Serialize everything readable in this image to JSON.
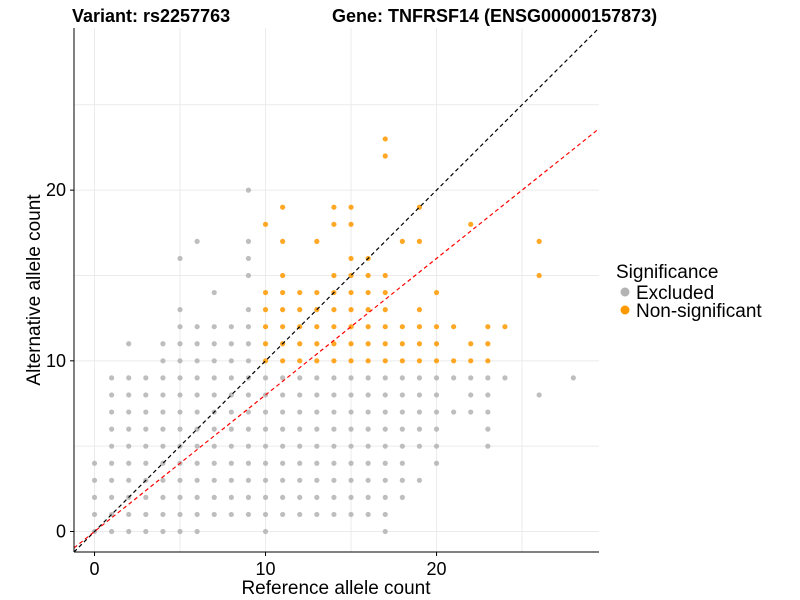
{
  "chart_data": {
    "type": "scatter",
    "title_left": "Variant: rs2257763",
    "title_right": "Gene: TNFRSF14 (ENSG00000157873)",
    "xlabel": "Reference allele count",
    "ylabel": "Alternative allele count",
    "xlim": [
      -1.2,
      29.5
    ],
    "ylim": [
      -1.2,
      29.5
    ],
    "x_ticks": [
      0,
      10,
      20
    ],
    "y_ticks": [
      0,
      10,
      20
    ],
    "grid": true,
    "legend": {
      "title": "Significance",
      "position": "right",
      "entries": [
        {
          "label": "Excluded",
          "color": "#b3b3b3"
        },
        {
          "label": "Non-significant",
          "color": "#ff9900"
        }
      ]
    },
    "reference_lines": [
      {
        "name": "y = x",
        "slope": 1.0,
        "intercept": 0,
        "color": "#000000",
        "style": "dashed"
      },
      {
        "name": "fit",
        "slope": 0.8,
        "intercept": 0,
        "color": "#ff0000",
        "style": "dashed"
      }
    ],
    "series": [
      {
        "name": "Excluded",
        "color": "#b3b3b3",
        "points": [
          [
            0,
            0
          ],
          [
            0,
            1
          ],
          [
            0,
            2
          ],
          [
            0,
            3
          ],
          [
            0,
            4
          ],
          [
            1,
            0
          ],
          [
            1,
            1
          ],
          [
            1,
            2
          ],
          [
            1,
            3
          ],
          [
            1,
            4
          ],
          [
            1,
            5
          ],
          [
            1,
            6
          ],
          [
            1,
            7
          ],
          [
            1,
            8
          ],
          [
            1,
            9
          ],
          [
            2,
            0
          ],
          [
            2,
            1
          ],
          [
            2,
            2
          ],
          [
            2,
            3
          ],
          [
            2,
            4
          ],
          [
            2,
            5
          ],
          [
            2,
            6
          ],
          [
            2,
            7
          ],
          [
            2,
            8
          ],
          [
            2,
            9
          ],
          [
            2,
            11
          ],
          [
            3,
            0
          ],
          [
            3,
            1
          ],
          [
            3,
            2
          ],
          [
            3,
            3
          ],
          [
            3,
            4
          ],
          [
            3,
            5
          ],
          [
            3,
            6
          ],
          [
            3,
            7
          ],
          [
            3,
            8
          ],
          [
            3,
            9
          ],
          [
            4,
            0
          ],
          [
            4,
            1
          ],
          [
            4,
            2
          ],
          [
            4,
            3
          ],
          [
            4,
            4
          ],
          [
            4,
            5
          ],
          [
            4,
            6
          ],
          [
            4,
            7
          ],
          [
            4,
            8
          ],
          [
            4,
            9
          ],
          [
            4,
            10
          ],
          [
            4,
            11
          ],
          [
            5,
            0
          ],
          [
            5,
            1
          ],
          [
            5,
            2
          ],
          [
            5,
            3
          ],
          [
            5,
            4
          ],
          [
            5,
            5
          ],
          [
            5,
            6
          ],
          [
            5,
            7
          ],
          [
            5,
            8
          ],
          [
            5,
            9
          ],
          [
            5,
            10
          ],
          [
            5,
            11
          ],
          [
            5,
            12
          ],
          [
            5,
            13
          ],
          [
            5,
            16
          ],
          [
            6,
            0
          ],
          [
            6,
            1
          ],
          [
            6,
            2
          ],
          [
            6,
            3
          ],
          [
            6,
            4
          ],
          [
            6,
            5
          ],
          [
            6,
            6
          ],
          [
            6,
            7
          ],
          [
            6,
            8
          ],
          [
            6,
            9
          ],
          [
            6,
            10
          ],
          [
            6,
            11
          ],
          [
            6,
            12
          ],
          [
            6,
            17
          ],
          [
            7,
            1
          ],
          [
            7,
            2
          ],
          [
            7,
            3
          ],
          [
            7,
            4
          ],
          [
            7,
            5
          ],
          [
            7,
            6
          ],
          [
            7,
            7
          ],
          [
            7,
            8
          ],
          [
            7,
            9
          ],
          [
            7,
            10
          ],
          [
            7,
            11
          ],
          [
            7,
            12
          ],
          [
            7,
            14
          ],
          [
            8,
            1
          ],
          [
            8,
            2
          ],
          [
            8,
            3
          ],
          [
            8,
            4
          ],
          [
            8,
            5
          ],
          [
            8,
            6
          ],
          [
            8,
            7
          ],
          [
            8,
            8
          ],
          [
            8,
            9
          ],
          [
            8,
            10
          ],
          [
            8,
            11
          ],
          [
            8,
            12
          ],
          [
            9,
            1
          ],
          [
            9,
            2
          ],
          [
            9,
            3
          ],
          [
            9,
            4
          ],
          [
            9,
            5
          ],
          [
            9,
            6
          ],
          [
            9,
            7
          ],
          [
            9,
            8
          ],
          [
            9,
            9
          ],
          [
            9,
            10
          ],
          [
            9,
            11
          ],
          [
            9,
            12
          ],
          [
            9,
            13
          ],
          [
            9,
            15
          ],
          [
            9,
            16
          ],
          [
            9,
            17
          ],
          [
            9,
            20
          ],
          [
            10,
            0
          ],
          [
            10,
            1
          ],
          [
            10,
            2
          ],
          [
            10,
            3
          ],
          [
            10,
            4
          ],
          [
            10,
            5
          ],
          [
            10,
            6
          ],
          [
            10,
            7
          ],
          [
            10,
            8
          ],
          [
            10,
            9
          ],
          [
            11,
            1
          ],
          [
            11,
            2
          ],
          [
            11,
            3
          ],
          [
            11,
            4
          ],
          [
            11,
            5
          ],
          [
            11,
            6
          ],
          [
            11,
            7
          ],
          [
            11,
            8
          ],
          [
            11,
            9
          ],
          [
            12,
            1
          ],
          [
            12,
            2
          ],
          [
            12,
            3
          ],
          [
            12,
            4
          ],
          [
            12,
            5
          ],
          [
            12,
            6
          ],
          [
            12,
            7
          ],
          [
            12,
            8
          ],
          [
            12,
            9
          ],
          [
            13,
            1
          ],
          [
            13,
            2
          ],
          [
            13,
            3
          ],
          [
            13,
            4
          ],
          [
            13,
            5
          ],
          [
            13,
            6
          ],
          [
            13,
            7
          ],
          [
            13,
            8
          ],
          [
            13,
            9
          ],
          [
            14,
            1
          ],
          [
            14,
            2
          ],
          [
            14,
            3
          ],
          [
            14,
            4
          ],
          [
            14,
            5
          ],
          [
            14,
            6
          ],
          [
            14,
            7
          ],
          [
            14,
            8
          ],
          [
            14,
            9
          ],
          [
            15,
            1
          ],
          [
            15,
            2
          ],
          [
            15,
            3
          ],
          [
            15,
            4
          ],
          [
            15,
            5
          ],
          [
            15,
            6
          ],
          [
            15,
            7
          ],
          [
            15,
            8
          ],
          [
            15,
            9
          ],
          [
            16,
            1
          ],
          [
            16,
            2
          ],
          [
            16,
            3
          ],
          [
            16,
            4
          ],
          [
            16,
            5
          ],
          [
            16,
            6
          ],
          [
            16,
            7
          ],
          [
            16,
            8
          ],
          [
            16,
            9
          ],
          [
            17,
            0
          ],
          [
            17,
            1
          ],
          [
            17,
            2
          ],
          [
            17,
            3
          ],
          [
            17,
            4
          ],
          [
            17,
            5
          ],
          [
            17,
            6
          ],
          [
            17,
            7
          ],
          [
            17,
            8
          ],
          [
            17,
            9
          ],
          [
            18,
            2
          ],
          [
            18,
            3
          ],
          [
            18,
            4
          ],
          [
            18,
            5
          ],
          [
            18,
            6
          ],
          [
            18,
            7
          ],
          [
            18,
            8
          ],
          [
            18,
            9
          ],
          [
            19,
            3
          ],
          [
            19,
            5
          ],
          [
            19,
            6
          ],
          [
            19,
            7
          ],
          [
            19,
            8
          ],
          [
            19,
            9
          ],
          [
            20,
            4
          ],
          [
            20,
            5
          ],
          [
            20,
            6
          ],
          [
            20,
            7
          ],
          [
            20,
            8
          ],
          [
            20,
            9
          ],
          [
            21,
            7
          ],
          [
            21,
            9
          ],
          [
            22,
            7
          ],
          [
            22,
            8
          ],
          [
            22,
            9
          ],
          [
            23,
            5
          ],
          [
            23,
            6
          ],
          [
            23,
            7
          ],
          [
            23,
            8
          ],
          [
            23,
            9
          ],
          [
            24,
            9
          ],
          [
            26,
            8
          ],
          [
            28,
            9
          ]
        ]
      },
      {
        "name": "Non-significant",
        "color": "#ff9900",
        "points": [
          [
            10,
            10
          ],
          [
            10,
            11
          ],
          [
            10,
            12
          ],
          [
            10,
            13
          ],
          [
            10,
            14
          ],
          [
            10,
            18
          ],
          [
            11,
            10
          ],
          [
            11,
            11
          ],
          [
            11,
            12
          ],
          [
            11,
            13
          ],
          [
            11,
            14
          ],
          [
            11,
            15
          ],
          [
            11,
            17
          ],
          [
            11,
            19
          ],
          [
            12,
            10
          ],
          [
            12,
            11
          ],
          [
            12,
            12
          ],
          [
            12,
            13
          ],
          [
            12,
            14
          ],
          [
            13,
            10
          ],
          [
            13,
            11
          ],
          [
            13,
            12
          ],
          [
            13,
            13
          ],
          [
            13,
            14
          ],
          [
            13,
            17
          ],
          [
            14,
            10
          ],
          [
            14,
            11
          ],
          [
            14,
            12
          ],
          [
            14,
            13
          ],
          [
            14,
            14
          ],
          [
            14,
            15
          ],
          [
            14,
            18
          ],
          [
            14,
            19
          ],
          [
            15,
            10
          ],
          [
            15,
            11
          ],
          [
            15,
            12
          ],
          [
            15,
            13
          ],
          [
            15,
            14
          ],
          [
            15,
            15
          ],
          [
            15,
            16
          ],
          [
            15,
            18
          ],
          [
            15,
            19
          ],
          [
            16,
            10
          ],
          [
            16,
            11
          ],
          [
            16,
            12
          ],
          [
            16,
            13
          ],
          [
            16,
            14
          ],
          [
            16,
            15
          ],
          [
            16,
            16
          ],
          [
            17,
            10
          ],
          [
            17,
            11
          ],
          [
            17,
            12
          ],
          [
            17,
            13
          ],
          [
            17,
            14
          ],
          [
            17,
            15
          ],
          [
            17,
            22
          ],
          [
            17,
            23
          ],
          [
            18,
            10
          ],
          [
            18,
            11
          ],
          [
            18,
            12
          ],
          [
            18,
            17
          ],
          [
            19,
            10
          ],
          [
            19,
            11
          ],
          [
            19,
            12
          ],
          [
            19,
            13
          ],
          [
            19,
            17
          ],
          [
            19,
            19
          ],
          [
            20,
            10
          ],
          [
            20,
            11
          ],
          [
            20,
            12
          ],
          [
            20,
            14
          ],
          [
            21,
            10
          ],
          [
            21,
            12
          ],
          [
            22,
            10
          ],
          [
            22,
            11
          ],
          [
            22,
            18
          ],
          [
            23,
            10
          ],
          [
            23,
            11
          ],
          [
            23,
            12
          ],
          [
            24,
            12
          ],
          [
            26,
            15
          ],
          [
            26,
            17
          ]
        ]
      }
    ]
  }
}
